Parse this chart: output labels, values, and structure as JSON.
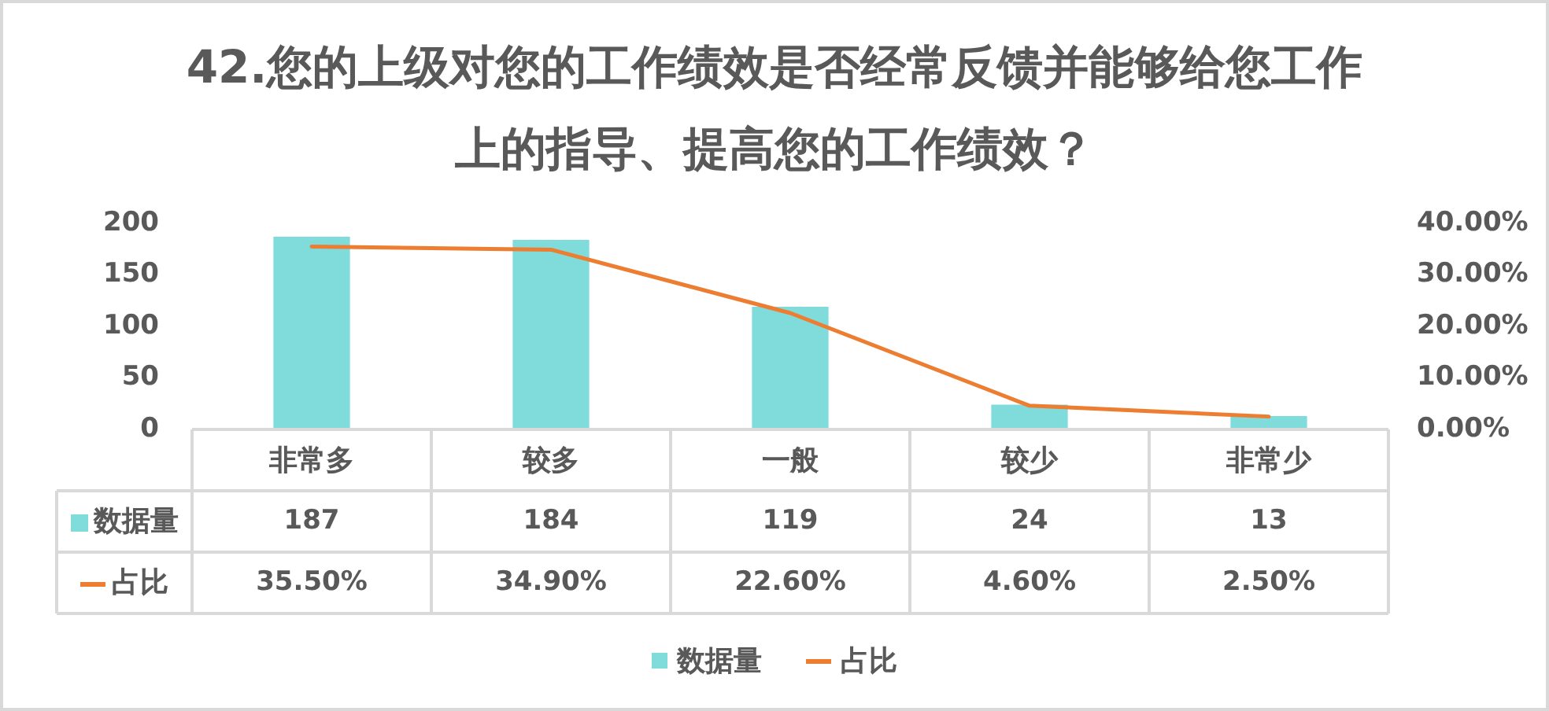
{
  "chart_data": {
    "type": "bar",
    "title": "42.您的上级对您的工作绩效是否经常反馈并能够给您工作上的指导、提高您的工作绩效？",
    "categories": [
      "非常多",
      "较多",
      "一般",
      "较少",
      "非常少"
    ],
    "series": [
      {
        "name": "数据量",
        "color": "#80dbdb",
        "values": [
          187,
          184,
          119,
          24,
          13
        ]
      },
      {
        "name": "占比",
        "type": "line",
        "axis": "y2",
        "color": "#ed7d31",
        "marker": "none",
        "values": [
          35.5,
          34.9,
          22.6,
          4.6,
          2.5
        ],
        "value_labels": [
          "35.50%",
          "34.90%",
          "22.60%",
          "4.60%",
          "2.50%"
        ]
      }
    ],
    "ylim": [
      0,
      200
    ],
    "yticks": [
      0,
      50,
      100,
      150,
      200
    ],
    "y2lim": [
      0,
      40
    ],
    "y2ticks": [
      {
        "value": 0,
        "label": "0.00%"
      },
      {
        "value": 10,
        "label": "10.00%"
      },
      {
        "value": 20,
        "label": "20.00%"
      },
      {
        "value": 30,
        "label": "30.00%"
      },
      {
        "value": 40,
        "label": "40.00%"
      }
    ],
    "data_labels": true,
    "legend": "bottom"
  }
}
